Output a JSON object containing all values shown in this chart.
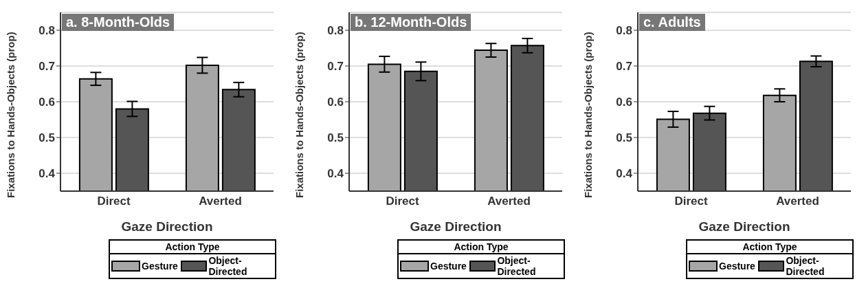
{
  "chart_data": [
    {
      "type": "bar",
      "title": "a. 8-Month-Olds",
      "xlabel": "Gaze Direction",
      "ylabel": "Fixations to Hands-Objects (prop)",
      "legend_title": "Action Type",
      "categories": [
        "Direct",
        "Averted"
      ],
      "series": [
        {
          "name": "Gesture",
          "color": "#a6a6a6",
          "values": [
            0.664,
            0.702
          ],
          "errors": [
            0.018,
            0.022
          ]
        },
        {
          "name": "Object-Directed",
          "color": "#555555",
          "values": [
            0.58,
            0.634
          ],
          "errors": [
            0.021,
            0.02
          ]
        }
      ],
      "ylim": [
        0.35,
        0.85
      ],
      "yticks": [
        0.4,
        0.5,
        0.6,
        0.7,
        0.8
      ],
      "grid": "y",
      "legend": "bottom"
    },
    {
      "type": "bar",
      "title": "b. 12-Month-Olds",
      "xlabel": "Gaze Direction",
      "ylabel": "Fixations to Hands-Objects (prop)",
      "legend_title": "Action Type",
      "categories": [
        "Direct",
        "Averted"
      ],
      "series": [
        {
          "name": "Gesture",
          "color": "#a6a6a6",
          "values": [
            0.705,
            0.744
          ],
          "errors": [
            0.022,
            0.019
          ]
        },
        {
          "name": "Object-Directed",
          "color": "#555555",
          "values": [
            0.685,
            0.757
          ],
          "errors": [
            0.026,
            0.02
          ]
        }
      ],
      "ylim": [
        0.35,
        0.85
      ],
      "yticks": [
        0.4,
        0.5,
        0.6,
        0.7,
        0.8
      ],
      "grid": "y",
      "legend": "bottom"
    },
    {
      "type": "bar",
      "title": "c. Adults",
      "xlabel": "Gaze Direction",
      "ylabel": "Fixations to Hands-Objects (prop)",
      "legend_title": "Action Type",
      "categories": [
        "Direct",
        "Averted"
      ],
      "series": [
        {
          "name": "Gesture",
          "color": "#a6a6a6",
          "values": [
            0.551,
            0.618
          ],
          "errors": [
            0.022,
            0.018
          ]
        },
        {
          "name": "Object-Directed",
          "color": "#555555",
          "values": [
            0.568,
            0.713
          ],
          "errors": [
            0.019,
            0.015
          ]
        }
      ],
      "ylim": [
        0.35,
        0.85
      ],
      "yticks": [
        0.4,
        0.5,
        0.6,
        0.7,
        0.8
      ],
      "grid": "y",
      "legend": "bottom"
    }
  ]
}
